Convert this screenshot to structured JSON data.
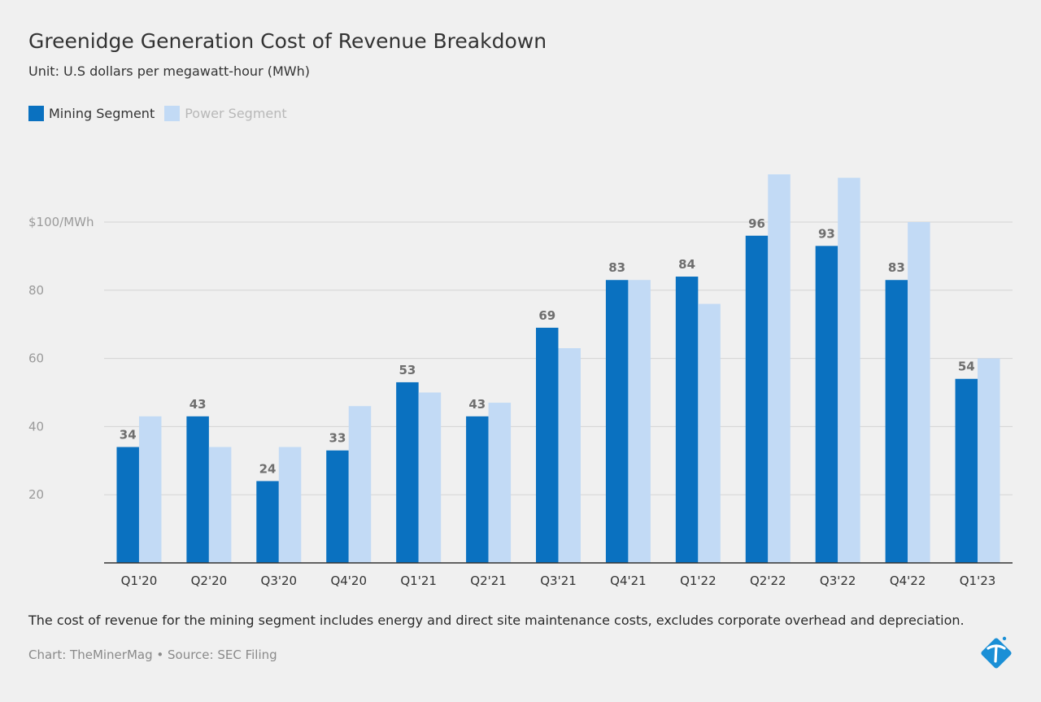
{
  "header": {
    "title": "Greenidge Generation Cost of Revenue Breakdown",
    "subtitle": "Unit: U.S dollars per megawatt-hour (MWh)"
  },
  "legend": {
    "items": [
      {
        "label": "Mining Segment",
        "color": "#0a71c0",
        "state": "active"
      },
      {
        "label": "Power Segment",
        "color": "#c2daf5",
        "state": "muted"
      }
    ]
  },
  "chart_data": {
    "type": "bar",
    "categories": [
      "Q1'20",
      "Q2'20",
      "Q3'20",
      "Q4'20",
      "Q1'21",
      "Q2'21",
      "Q3'21",
      "Q4'21",
      "Q1'22",
      "Q2'22",
      "Q3'22",
      "Q4'22",
      "Q1'23"
    ],
    "series": [
      {
        "name": "Mining Segment",
        "color": "#0a71c0",
        "values": [
          34,
          43,
          24,
          33,
          53,
          43,
          69,
          83,
          84,
          96,
          93,
          83,
          54
        ],
        "data_labels": true
      },
      {
        "name": "Power Segment",
        "color": "#c2daf5",
        "values": [
          43,
          34,
          34,
          46,
          50,
          47,
          63,
          83,
          76,
          114,
          113,
          100,
          60
        ],
        "data_labels": false
      }
    ],
    "yticks": [
      {
        "value": 20,
        "label": "20"
      },
      {
        "value": 40,
        "label": "40"
      },
      {
        "value": 60,
        "label": "60"
      },
      {
        "value": 80,
        "label": "80"
      },
      {
        "value": 100,
        "label": "$100/MWh"
      }
    ],
    "ylim": [
      0,
      115
    ],
    "grid": true,
    "legend_position": "top-left"
  },
  "footer": {
    "note": "The cost of revenue for the mining segment includes energy and direct site maintenance costs, excludes corporate overhead and depreciation.",
    "credit": "Chart: TheMinerMag • Source: SEC Filing"
  },
  "logo": {
    "icon": "pickaxe-logo-icon",
    "color": "#1a8fd6"
  }
}
